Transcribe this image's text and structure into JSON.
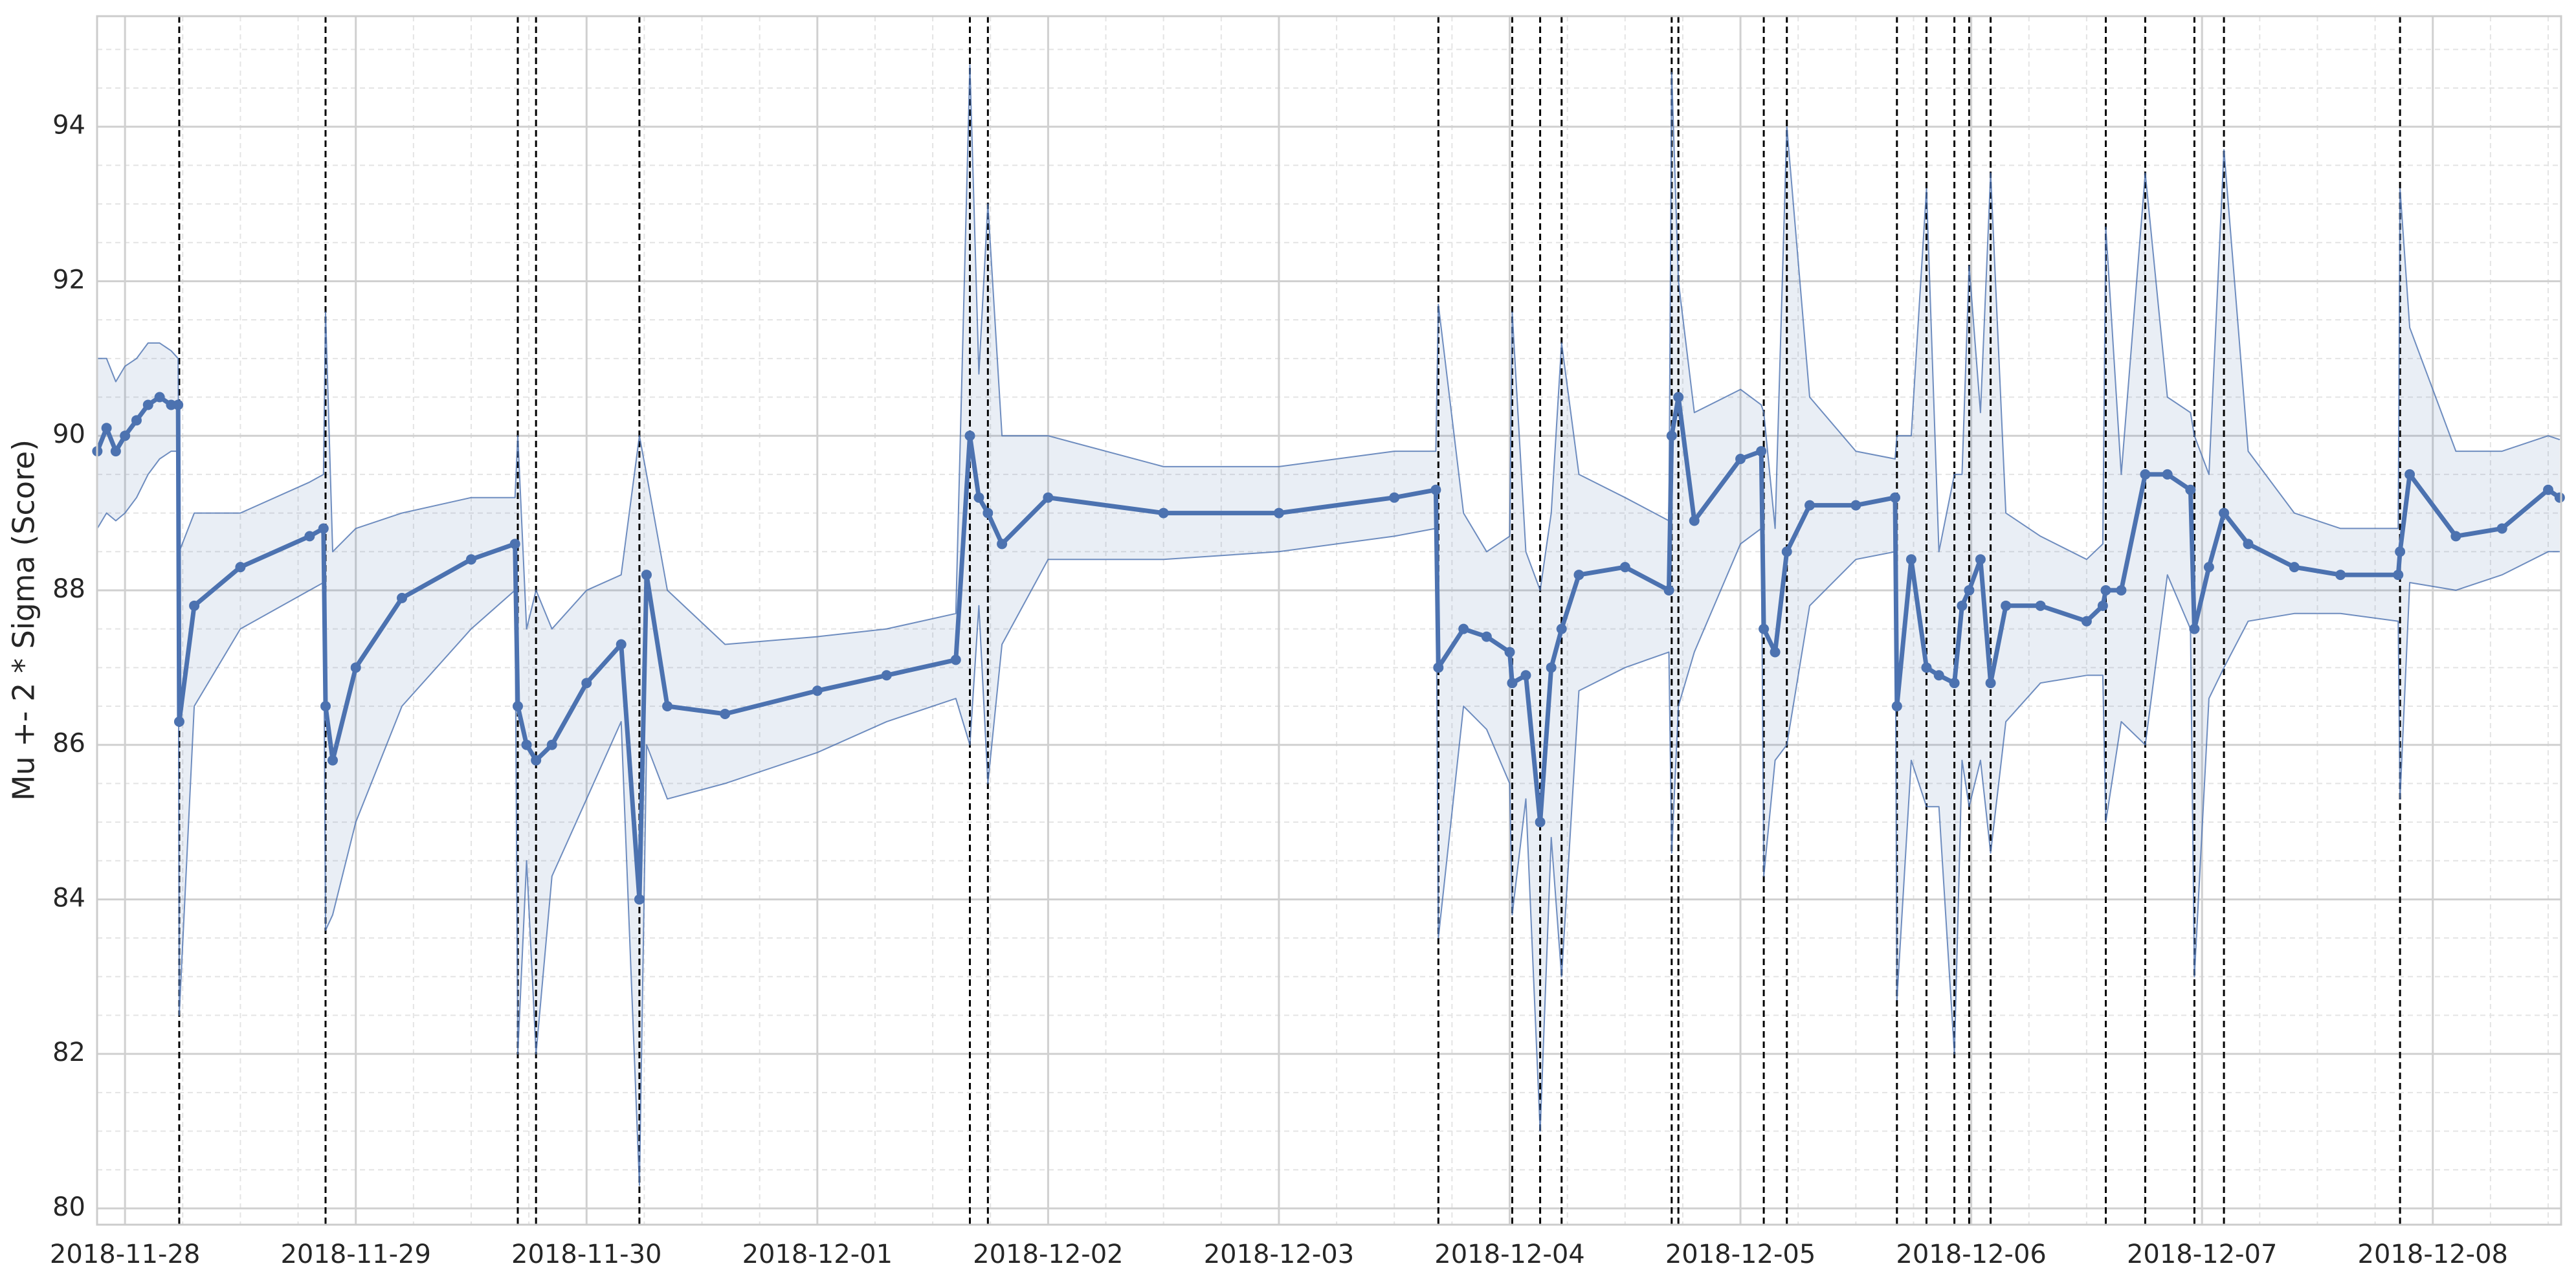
{
  "chart_data": {
    "type": "line",
    "y_label": "Mu +- 2 * Sigma (Score)",
    "xlim": [
      -0.121,
      10.556
    ],
    "xticks": [
      {
        "value": 0,
        "label": "2018-11-28"
      },
      {
        "value": 1,
        "label": "2018-11-29"
      },
      {
        "value": 2,
        "label": "2018-11-30"
      },
      {
        "value": 3,
        "label": "2018-12-01"
      },
      {
        "value": 4,
        "label": "2018-12-02"
      },
      {
        "value": 5,
        "label": "2018-12-03"
      },
      {
        "value": 6,
        "label": "2018-12-04"
      },
      {
        "value": 7,
        "label": "2018-12-05"
      },
      {
        "value": 8,
        "label": "2018-12-06"
      },
      {
        "value": 9,
        "label": "2018-12-07"
      },
      {
        "value": 10,
        "label": "2018-12-08"
      }
    ],
    "ylim": [
      79.79,
      95.43
    ],
    "yticks": [
      80,
      82,
      84,
      86,
      88,
      90,
      92,
      94
    ],
    "grid": true,
    "x": [
      -0.12,
      -0.08,
      -0.04,
      0.0,
      0.05,
      0.1,
      0.15,
      0.2,
      0.23,
      0.235,
      0.3,
      0.5,
      0.8,
      0.86,
      0.869,
      0.9,
      1.0,
      1.2,
      1.5,
      1.69,
      1.702,
      1.74,
      1.781,
      1.85,
      2.0,
      2.15,
      2.229,
      2.26,
      2.35,
      2.6,
      3.0,
      3.3,
      3.6,
      3.661,
      3.7,
      3.739,
      3.8,
      4.0,
      4.5,
      5.0,
      5.5,
      5.68,
      5.691,
      5.8,
      5.9,
      6.0,
      6.011,
      6.07,
      6.132,
      6.18,
      6.225,
      6.3,
      6.5,
      6.69,
      6.702,
      6.731,
      6.8,
      7.0,
      7.09,
      7.101,
      7.15,
      7.201,
      7.3,
      7.5,
      7.67,
      7.678,
      7.74,
      7.806,
      7.86,
      7.927,
      7.96,
      7.991,
      8.04,
      8.084,
      8.15,
      8.3,
      8.5,
      8.57,
      8.583,
      8.65,
      8.754,
      8.85,
      8.95,
      8.967,
      9.03,
      9.095,
      9.2,
      9.4,
      9.6,
      9.85,
      9.858,
      9.9,
      10.1,
      10.3,
      10.5,
      10.55
    ],
    "series": [
      {
        "color": "#4c72b0",
        "values": [
          89.8,
          90.1,
          89.8,
          90.0,
          90.2,
          90.4,
          90.5,
          90.4,
          90.4,
          86.3,
          87.8,
          88.3,
          88.7,
          88.8,
          86.5,
          85.8,
          87.0,
          87.9,
          88.4,
          88.6,
          86.5,
          86.0,
          85.8,
          86.0,
          86.8,
          87.3,
          84.0,
          88.2,
          86.5,
          86.4,
          86.7,
          86.9,
          87.1,
          90.0,
          89.2,
          89.0,
          88.6,
          89.2,
          89.0,
          89.0,
          89.2,
          89.3,
          87.0,
          87.5,
          87.4,
          87.2,
          86.8,
          86.9,
          85.0,
          87.0,
          87.5,
          88.2,
          88.3,
          88.0,
          90.0,
          90.5,
          88.9,
          89.7,
          89.8,
          87.5,
          87.2,
          88.5,
          89.1,
          89.1,
          89.2,
          86.5,
          88.4,
          87.0,
          86.9,
          86.8,
          87.8,
          88.0,
          88.4,
          86.8,
          87.8,
          87.8,
          87.6,
          87.8,
          88.0,
          88.0,
          89.5,
          89.5,
          89.3,
          87.5,
          88.3,
          89.0,
          88.6,
          88.3,
          88.2,
          88.2,
          88.5,
          89.5,
          88.7,
          88.8,
          89.3,
          89.2
        ]
      },
      {
        "color": "#4c72b0",
        "values": [
          91.0,
          91.0,
          90.7,
          90.9,
          91.0,
          91.2,
          91.2,
          91.1,
          91.0,
          88.5,
          89.0,
          89.0,
          89.4,
          89.5,
          91.6,
          88.5,
          88.8,
          89.0,
          89.2,
          89.2,
          90.0,
          87.5,
          88.0,
          87.5,
          88.0,
          88.2,
          90.0,
          89.5,
          88.0,
          87.3,
          87.4,
          87.5,
          87.7,
          94.8,
          90.8,
          93.0,
          90.0,
          90.0,
          89.6,
          89.6,
          89.8,
          89.8,
          91.7,
          89.0,
          88.5,
          88.7,
          91.6,
          88.5,
          88.0,
          89.0,
          91.2,
          89.5,
          89.2,
          88.9,
          94.7,
          92.0,
          90.3,
          90.6,
          90.4,
          90.3,
          88.8,
          94.0,
          90.5,
          89.8,
          89.7,
          90.0,
          90.0,
          93.2,
          88.5,
          89.5,
          89.5,
          92.2,
          90.3,
          93.4,
          89.0,
          88.7,
          88.4,
          88.6,
          92.7,
          89.5,
          93.4,
          90.5,
          90.3,
          90.0,
          89.5,
          93.7,
          89.8,
          89.0,
          88.8,
          88.8,
          93.2,
          91.4,
          89.8,
          89.8,
          90.0,
          89.95
        ]
      },
      {
        "color": "#4c72b0",
        "values": [
          88.8,
          89.0,
          88.9,
          89.0,
          89.2,
          89.5,
          89.7,
          89.8,
          89.8,
          82.5,
          86.5,
          87.5,
          88.0,
          88.1,
          83.6,
          83.8,
          85.0,
          86.5,
          87.5,
          88.0,
          82.0,
          84.5,
          82.0,
          84.3,
          85.3,
          86.3,
          80.3,
          86.0,
          85.3,
          85.5,
          85.9,
          86.3,
          86.6,
          86.0,
          87.8,
          85.5,
          87.3,
          88.4,
          88.4,
          88.5,
          88.7,
          88.8,
          83.5,
          86.5,
          86.2,
          85.5,
          83.8,
          85.3,
          81.0,
          84.8,
          83.0,
          86.7,
          87.0,
          87.2,
          84.6,
          86.5,
          87.2,
          88.6,
          88.8,
          84.3,
          85.8,
          86.0,
          87.8,
          88.4,
          88.5,
          82.7,
          85.8,
          85.2,
          85.2,
          82.0,
          85.8,
          85.2,
          85.8,
          84.6,
          86.3,
          86.8,
          86.9,
          86.9,
          85.0,
          86.3,
          86.0,
          88.2,
          87.5,
          83.0,
          86.6,
          87.0,
          87.6,
          87.7,
          87.7,
          87.6,
          85.3,
          88.1,
          88.0,
          88.2,
          88.5,
          88.5
        ]
      }
    ],
    "band_color": "#4c72b0",
    "changepoints": [
      0.235,
      0.869,
      1.702,
      1.781,
      2.229,
      3.661,
      3.739,
      5.691,
      6.011,
      6.132,
      6.225,
      6.702,
      6.731,
      7.101,
      7.201,
      7.678,
      7.806,
      7.927,
      7.991,
      8.084,
      8.583,
      8.754,
      8.967,
      9.095,
      9.858
    ],
    "changepoint_color": "#000000"
  }
}
